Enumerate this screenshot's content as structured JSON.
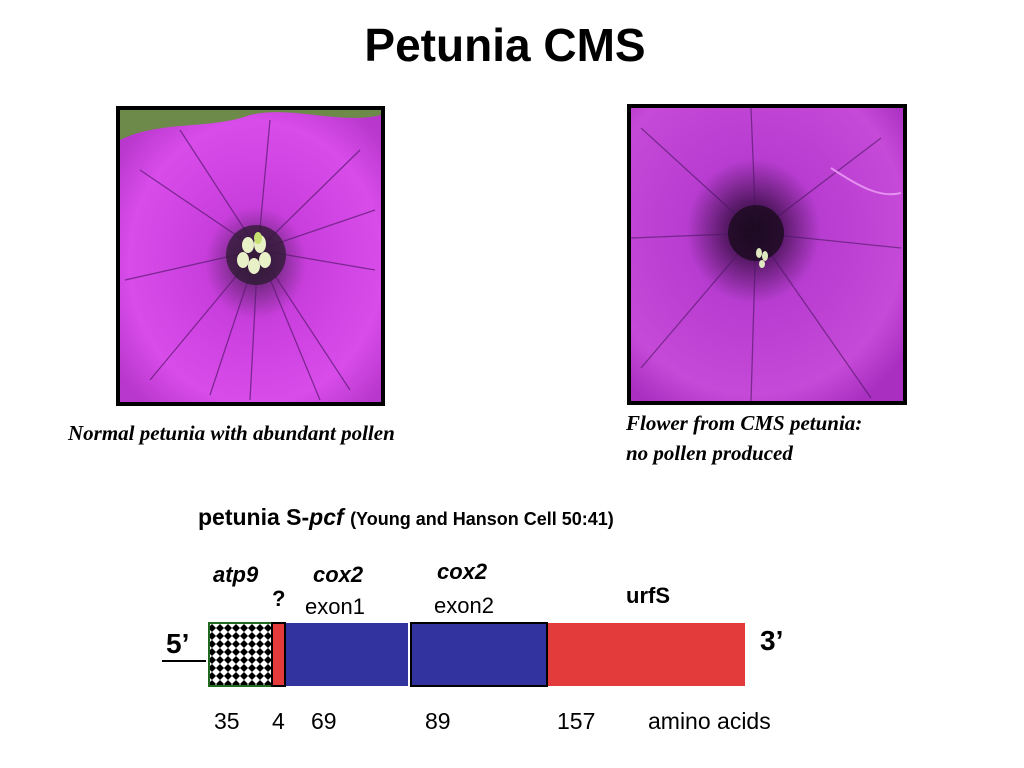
{
  "title": "Petunia CMS",
  "photos": {
    "normal": {
      "caption": "Normal petunia with abundant pollen"
    },
    "cms": {
      "caption_line1": "Flower from CMS petunia:",
      "caption_line2": "no pollen produced"
    }
  },
  "gene_map": {
    "name_prefix": "petunia S-",
    "name_italic": "pcf",
    "reference": "(Young and Hanson Cell 50:41)",
    "end_left": "5’",
    "end_right": "3’",
    "segments": [
      {
        "label": "atp9",
        "sublabel": "",
        "amino_acids": "35",
        "color": "#ffffff",
        "pattern": "checkered"
      },
      {
        "label": "?",
        "sublabel": "",
        "amino_acids": "4",
        "color": "#e33b3b",
        "pattern": "solid"
      },
      {
        "label": "cox2",
        "sublabel": "exon1",
        "amino_acids": "69",
        "color": "#3333a0",
        "pattern": "solid"
      },
      {
        "label": "cox2",
        "sublabel": "exon2",
        "amino_acids": "89",
        "color": "#3333a0",
        "pattern": "solid"
      },
      {
        "label": "urfS",
        "sublabel": "",
        "amino_acids": "157",
        "color": "#e33b3b",
        "pattern": "solid"
      }
    ],
    "units_label": "amino acids"
  },
  "colors": {
    "petal": "#c43fd8",
    "petal_light": "#e05ff0",
    "throat": "#2a1038",
    "border": "#1e6b1e"
  }
}
